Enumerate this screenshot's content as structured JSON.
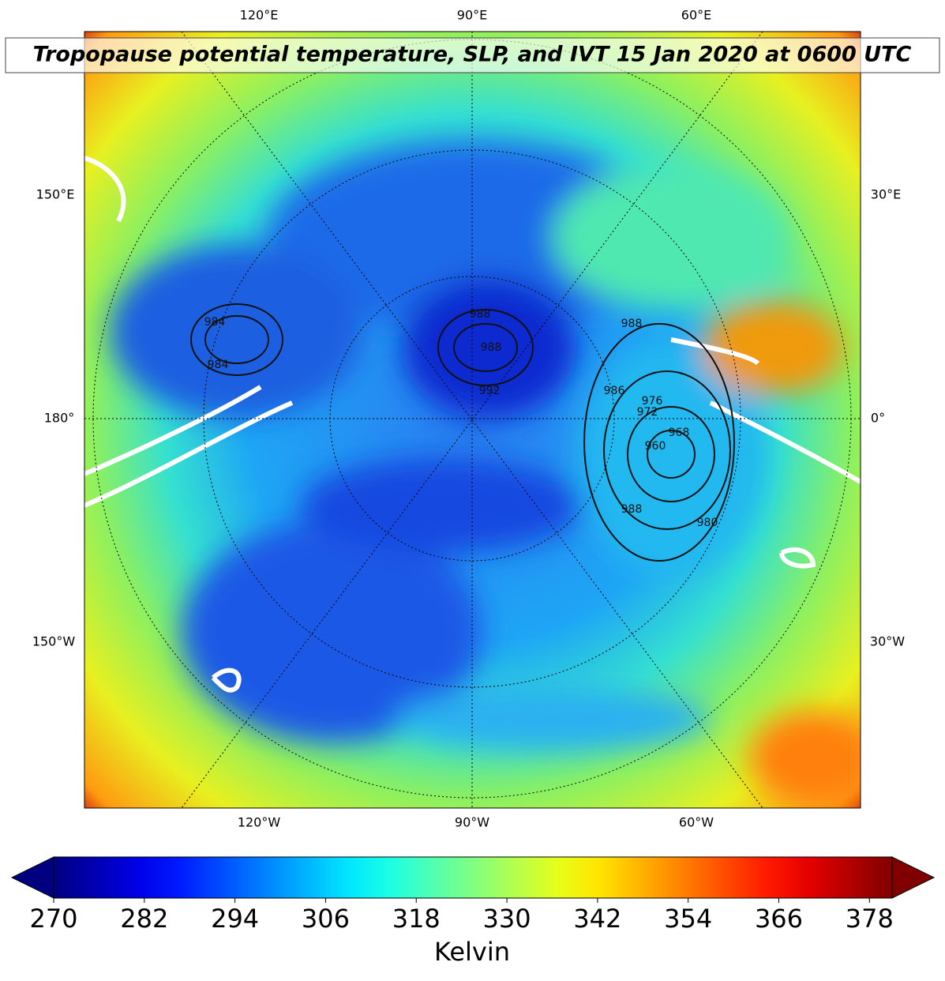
{
  "title": "Tropopause potential temperature, SLP, and IVT 15 Jan 2020 at 0600 UTC",
  "map": {
    "top_labels": [
      "120°E",
      "90°E",
      "60°E"
    ],
    "left_labels": [
      "150°E",
      "180°",
      "150°W"
    ],
    "right_labels": [
      "30°E",
      "0°",
      "30°W"
    ],
    "bottom_labels": [
      "120°W",
      "90°W",
      "60°W"
    ],
    "slp_contour_labels": [
      988,
      988,
      992,
      984,
      984,
      988,
      986,
      976,
      972,
      968,
      960,
      988,
      980
    ]
  },
  "chart_data": {
    "type": "colorbar",
    "colormap": "jet",
    "label": "Kelvin",
    "xlim": [
      270,
      381
    ],
    "xticks": [
      270,
      282,
      294,
      306,
      318,
      330,
      342,
      354,
      366,
      378
    ],
    "extend": "both"
  }
}
